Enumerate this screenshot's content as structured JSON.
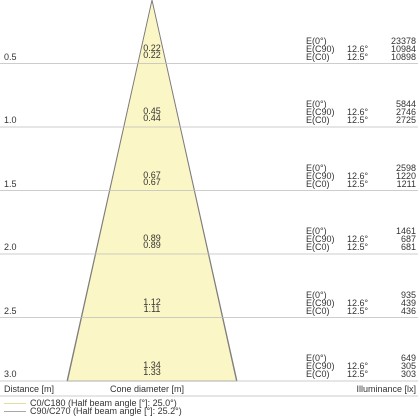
{
  "axis_labels": {
    "distance": "Distance [m]",
    "cone_diameter": "Cone diameter [m]",
    "illuminance": "Illuminance [lx]"
  },
  "row_labels": {
    "e0": "E(0°)",
    "e_c90": "E(C90)",
    "e_c0": "E(C0)"
  },
  "rows": [
    {
      "distance": "0.5",
      "diameters": [
        "0.22",
        "0.22"
      ],
      "e0": "23378",
      "c90_angle": "12.6°",
      "e_c90": "10984",
      "c0_angle": "12.5°",
      "e_c0": "10898"
    },
    {
      "distance": "1.0",
      "diameters": [
        "0.45",
        "0.44"
      ],
      "e0": "5844",
      "c90_angle": "12.6°",
      "e_c90": "2746",
      "c0_angle": "12.5°",
      "e_c0": "2725"
    },
    {
      "distance": "1.5",
      "diameters": [
        "0.67",
        "0.67"
      ],
      "e0": "2598",
      "c90_angle": "12.6°",
      "e_c90": "1220",
      "c0_angle": "12.5°",
      "e_c0": "1211"
    },
    {
      "distance": "2.0",
      "diameters": [
        "0.89",
        "0.89"
      ],
      "e0": "1461",
      "c90_angle": "12.6°",
      "e_c90": "687",
      "c0_angle": "12.5°",
      "e_c0": "681"
    },
    {
      "distance": "2.5",
      "diameters": [
        "1.12",
        "1.11"
      ],
      "e0": "935",
      "c90_angle": "12.6°",
      "e_c90": "439",
      "c0_angle": "12.5°",
      "e_c0": "436"
    },
    {
      "distance": "3.0",
      "diameters": [
        "1.34",
        "1.33"
      ],
      "e0": "649",
      "c90_angle": "12.6°",
      "e_c90": "305",
      "c0_angle": "12.5°",
      "e_c0": "303"
    }
  ],
  "legend": [
    {
      "label": "C0/C180 (Half beam angle [°]: 25.0°)",
      "color": "#e6dca0"
    },
    {
      "label": "C90/C270 (Half beam angle [°]: 25.2°)",
      "color": "#a8a8a8"
    }
  ],
  "colors": {
    "cone_fill": "#fbf6c6",
    "cone_stroke": "#7d7d7d",
    "grid": "#bdbdbd",
    "text": "#333333"
  }
}
